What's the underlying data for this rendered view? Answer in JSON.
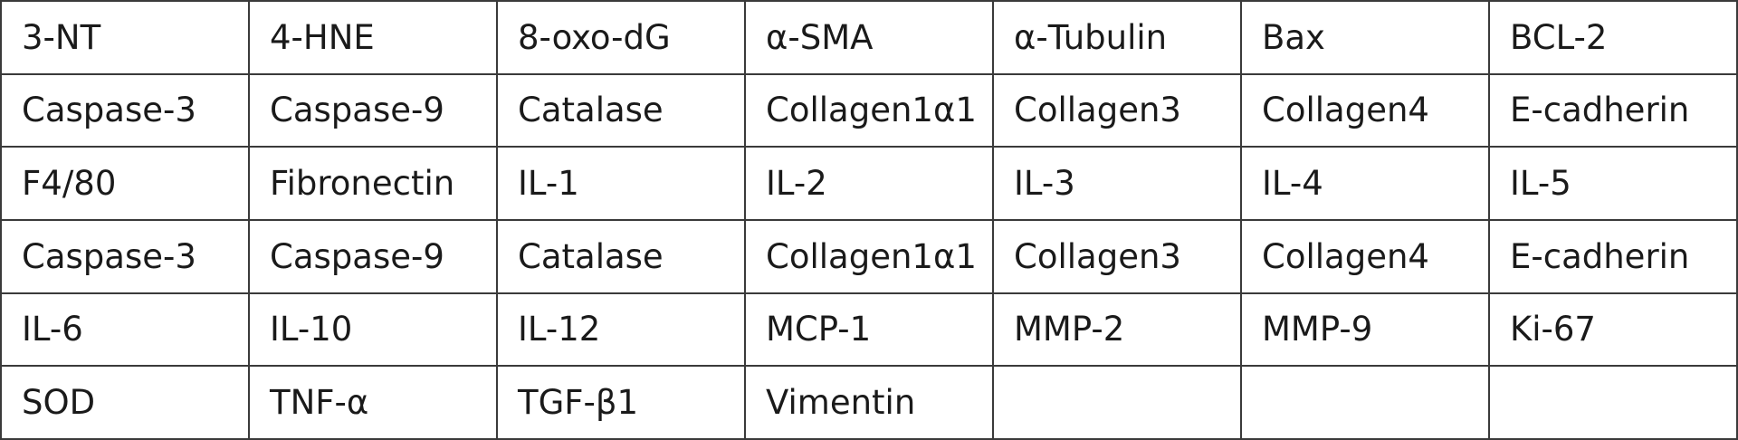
{
  "table": {
    "rows": [
      [
        "3-NT",
        "4-HNE",
        "8-oxo-dG",
        "α-SMA",
        "α-Tubulin",
        "Bax",
        "BCL-2"
      ],
      [
        "Caspase-3",
        "Caspase-9",
        "Catalase",
        "Collagen1α1",
        "Collagen3",
        "Collagen4",
        "E-cadherin"
      ],
      [
        "F4/80",
        "Fibronectin",
        "IL-1",
        "IL-2",
        "IL-3",
        "IL-4",
        "IL-5"
      ],
      [
        "Caspase-3",
        "Caspase-9",
        "Catalase",
        "Collagen1α1",
        "Collagen3",
        "Collagen4",
        "E-cadherin"
      ],
      [
        "IL-6",
        "IL-10",
        "IL-12",
        "MCP-1",
        "MMP-2",
        "MMP-9",
        "Ki-67"
      ],
      [
        "SOD",
        "TNF-α",
        "TGF-β1",
        "Vimentin"
      ]
    ]
  }
}
